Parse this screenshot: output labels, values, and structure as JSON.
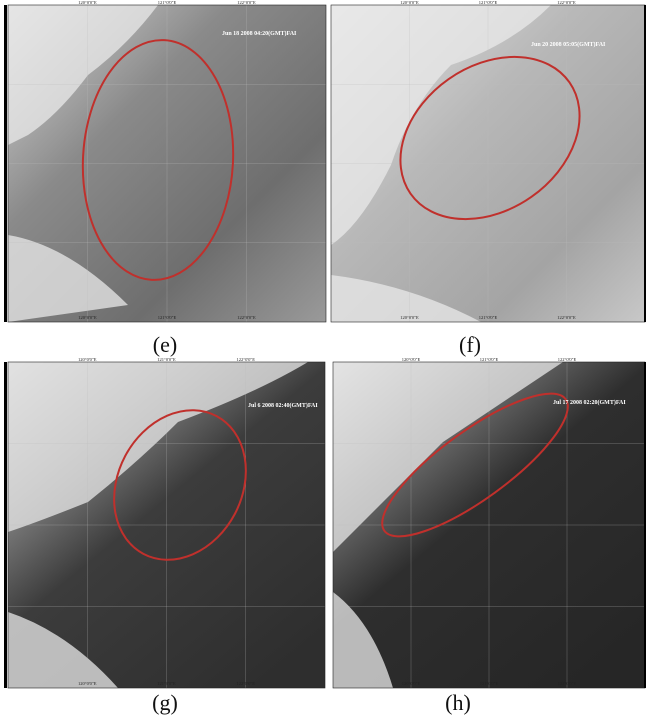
{
  "panels": [
    {
      "label": "(e)",
      "timestamp": "Jun 18 2008 04:20(GMT)FAI",
      "x_ticks": [
        "120°0'0\"E",
        "121°0'0\"E",
        "122°0'0\"E"
      ]
    },
    {
      "label": "(f)",
      "timestamp": "Jun 20 2008 05:05(GMT)FAI",
      "x_ticks": [
        "120°0'0\"E",
        "121°0'0\"E",
        "122°0'0\"E"
      ]
    },
    {
      "label": "(g)",
      "timestamp": "Jul 6 2008 02:40(GMT)FAI",
      "x_ticks": [
        "120°0'0\"E",
        "121°0'0\"E",
        "122°0'0\"E"
      ]
    },
    {
      "label": "(h)",
      "timestamp": "Jul 17 2008 02:20(GMT)FAI",
      "x_ticks": [
        "120°0'0\"E",
        "121°0'0\"E",
        "122°0'0\"E"
      ]
    }
  ]
}
